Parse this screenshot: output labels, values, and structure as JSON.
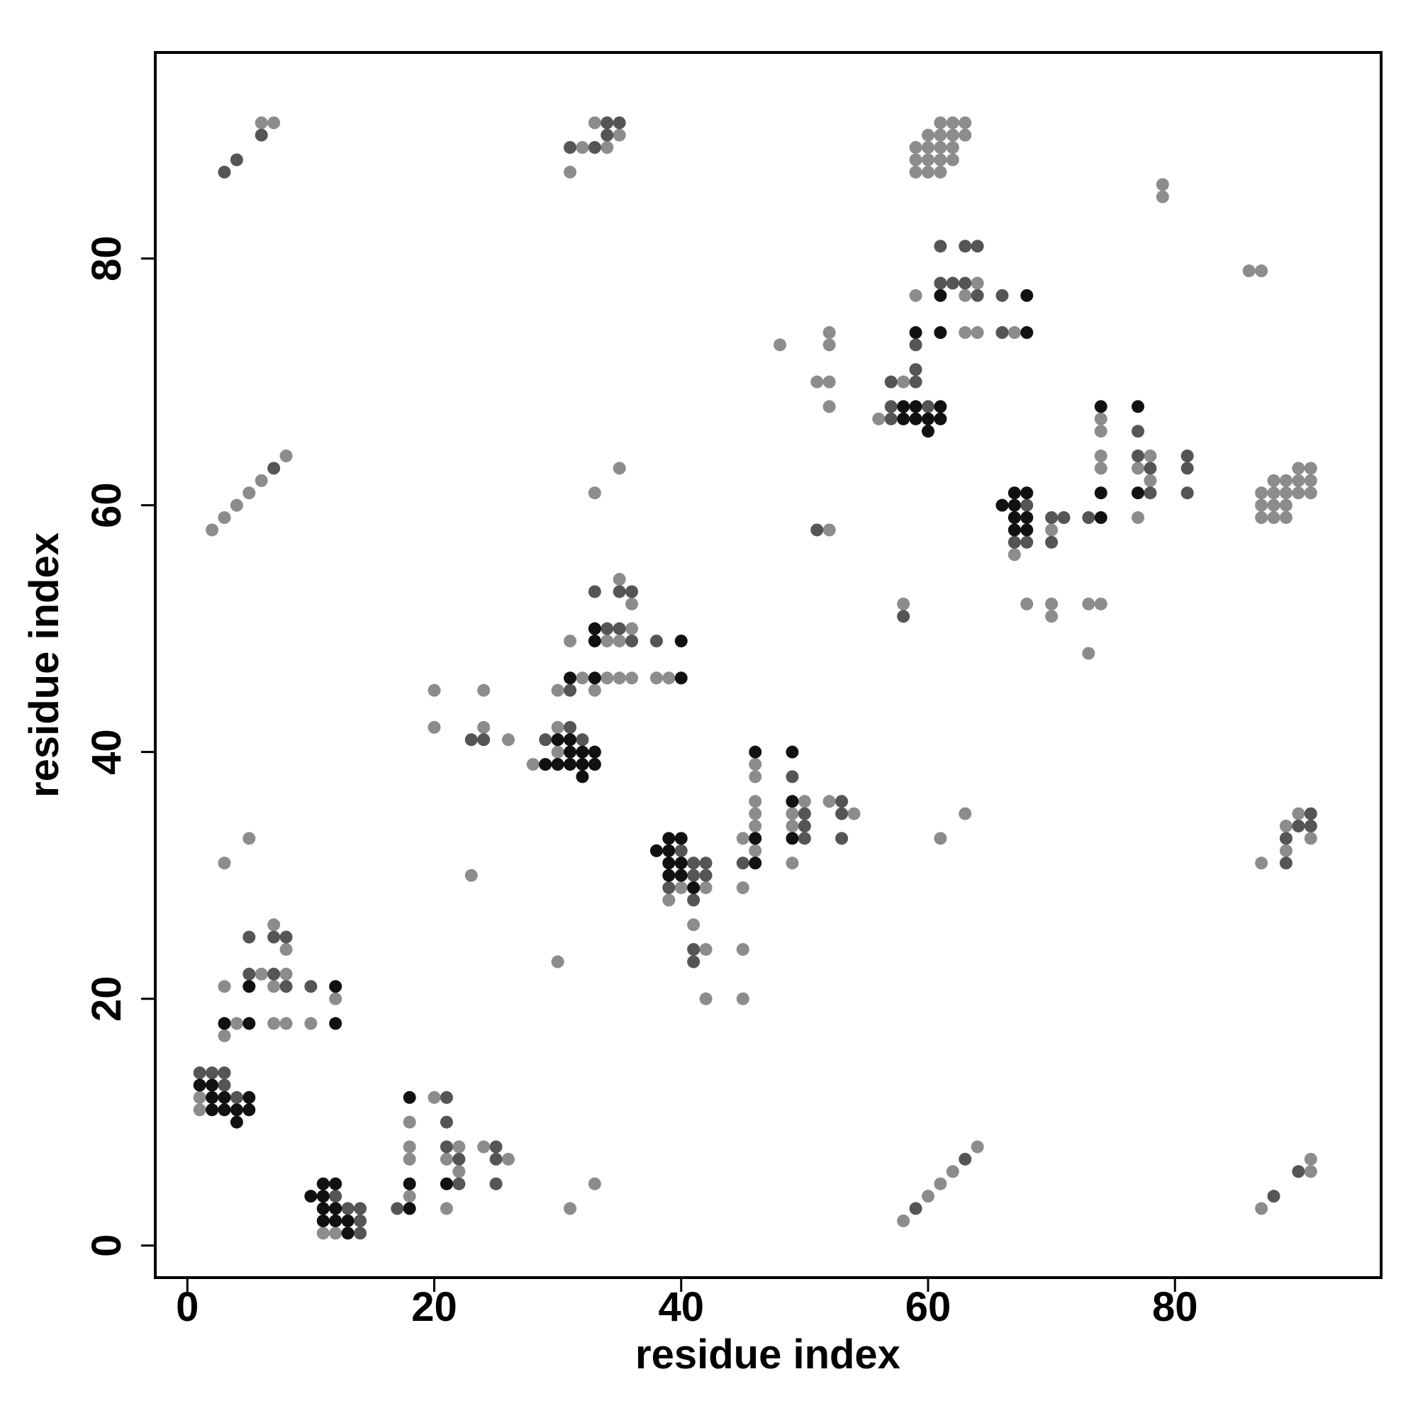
{
  "chart_data": {
    "type": "scatter",
    "xlabel": "residue index",
    "ylabel": "residue index",
    "xlim": [
      -2.6,
      96.7
    ],
    "ylim": [
      -2.6,
      96.7
    ],
    "xticks": [
      0,
      20,
      40,
      60,
      80
    ],
    "yticks": [
      0,
      20,
      40,
      60,
      80
    ],
    "grid": false,
    "series": [
      {
        "color": "#8c8c8c",
        "x": [
          6,
          7,
          31,
          32,
          34,
          33,
          35,
          59,
          60,
          61,
          59,
          60,
          61,
          62,
          59,
          60,
          61,
          62,
          60,
          61,
          62,
          63,
          61,
          62,
          63,
          79,
          79,
          86,
          87,
          64,
          59,
          63,
          63,
          64,
          67,
          48,
          52,
          52,
          51,
          52,
          52,
          58,
          56,
          2,
          3,
          4,
          5,
          6,
          8,
          33,
          35,
          52,
          58,
          67,
          70,
          68,
          70,
          70,
          74,
          74,
          74,
          74,
          73,
          74,
          73,
          78,
          77,
          78,
          77,
          87,
          88,
          89,
          87,
          88,
          89,
          87,
          88,
          89,
          90,
          91,
          88,
          89,
          90,
          91,
          90,
          91,
          35,
          36,
          31,
          36,
          34,
          35,
          32,
          34,
          35,
          36,
          38,
          39,
          33,
          30,
          20,
          24,
          20,
          24,
          26,
          30,
          30,
          28,
          46,
          46,
          46,
          50,
          52,
          46,
          49,
          54,
          46,
          49,
          45,
          46,
          49,
          40,
          42,
          39,
          41,
          42,
          42,
          45,
          45,
          45,
          61,
          63,
          87,
          89,
          89,
          90,
          91,
          3,
          5,
          23,
          30,
          7,
          8,
          6,
          8,
          3,
          7,
          12,
          4,
          7,
          8,
          10,
          3,
          1,
          1,
          11,
          12,
          20,
          18,
          18,
          22,
          24,
          18,
          21,
          26,
          22,
          18,
          21,
          31,
          33,
          58,
          60,
          61,
          62,
          64,
          87,
          91,
          91
        ],
        "y": [
          91,
          91,
          87,
          89,
          89,
          91,
          90,
          87,
          87,
          87,
          88,
          88,
          88,
          88,
          89,
          89,
          89,
          89,
          90,
          90,
          90,
          90,
          91,
          91,
          91,
          86,
          85,
          79,
          79,
          78,
          77,
          77,
          74,
          74,
          74,
          73,
          74,
          73,
          70,
          70,
          68,
          70,
          67,
          58,
          59,
          60,
          61,
          62,
          64,
          61,
          63,
          58,
          52,
          56,
          58,
          52,
          52,
          51,
          63,
          64,
          66,
          67,
          52,
          52,
          48,
          64,
          63,
          62,
          59,
          59,
          59,
          59,
          60,
          60,
          60,
          61,
          61,
          61,
          61,
          61,
          62,
          62,
          62,
          62,
          63,
          63,
          54,
          52,
          49,
          50,
          49,
          49,
          46,
          46,
          46,
          46,
          46,
          46,
          45,
          45,
          45,
          45,
          42,
          42,
          41,
          42,
          40,
          39,
          39,
          38,
          36,
          36,
          36,
          35,
          35,
          35,
          34,
          34,
          33,
          32,
          31,
          29,
          29,
          28,
          26,
          24,
          20,
          29,
          24,
          20,
          33,
          35,
          31,
          32,
          34,
          35,
          33,
          31,
          33,
          30,
          23,
          26,
          24,
          22,
          22,
          21,
          21,
          20,
          18,
          18,
          18,
          18,
          17,
          12,
          11,
          1,
          1,
          12,
          10,
          8,
          8,
          8,
          7,
          7,
          7,
          6,
          4,
          3,
          3,
          5,
          2,
          4,
          5,
          6,
          8,
          3,
          7,
          6
        ]
      },
      {
        "color": "#555555",
        "x": [
          3,
          4,
          6,
          31,
          33,
          34,
          35,
          34,
          61,
          63,
          64,
          61,
          62,
          63,
          64,
          66,
          66,
          59,
          59,
          57,
          59,
          57,
          57,
          60,
          7,
          51,
          58,
          67,
          68,
          68,
          70,
          70,
          71,
          73,
          77,
          77,
          78,
          78,
          81,
          81,
          81,
          33,
          35,
          36,
          34,
          35,
          36,
          38,
          31,
          23,
          24,
          31,
          29,
          32,
          49,
          53,
          50,
          53,
          50,
          50,
          53,
          45,
          40,
          41,
          42,
          41,
          42,
          39,
          41,
          41,
          41,
          89,
          89,
          90,
          91,
          91,
          5,
          7,
          8,
          5,
          7,
          8,
          10,
          1,
          2,
          3,
          3,
          4,
          12,
          13,
          14,
          14,
          14,
          21,
          21,
          21,
          25,
          22,
          25,
          22,
          25,
          17,
          59,
          63,
          88,
          90
        ],
        "y": [
          87,
          88,
          90,
          89,
          89,
          91,
          91,
          90,
          81,
          81,
          81,
          78,
          78,
          78,
          77,
          77,
          74,
          73,
          71,
          70,
          70,
          67,
          68,
          68,
          63,
          58,
          51,
          57,
          60,
          57,
          59,
          57,
          59,
          59,
          66,
          64,
          63,
          61,
          64,
          63,
          61,
          53,
          53,
          53,
          50,
          50,
          49,
          49,
          45,
          41,
          41,
          42,
          41,
          41,
          38,
          36,
          35,
          35,
          34,
          33,
          33,
          31,
          32,
          31,
          31,
          30,
          30,
          29,
          28,
          24,
          23,
          31,
          33,
          34,
          34,
          35,
          25,
          25,
          25,
          22,
          22,
          21,
          21,
          14,
          14,
          14,
          13,
          12,
          4,
          3,
          3,
          2,
          1,
          12,
          10,
          8,
          8,
          7,
          7,
          5,
          5,
          3,
          3,
          7,
          4,
          6
        ]
      },
      {
        "color": "#111111",
        "x": [
          61,
          68,
          59,
          61,
          68,
          58,
          58,
          59,
          59,
          60,
          61,
          61,
          60,
          66,
          67,
          67,
          67,
          67,
          68,
          68,
          68,
          74,
          74,
          74,
          77,
          77,
          33,
          33,
          40,
          31,
          33,
          40,
          30,
          31,
          31,
          32,
          33,
          29,
          30,
          31,
          32,
          33,
          32,
          46,
          49,
          49,
          46,
          49,
          46,
          38,
          39,
          40,
          39,
          39,
          40,
          39,
          40,
          41,
          5,
          12,
          3,
          5,
          12,
          1,
          2,
          2,
          3,
          5,
          2,
          3,
          4,
          5,
          4,
          11,
          12,
          10,
          11,
          11,
          12,
          11,
          12,
          13,
          13,
          18,
          18,
          21,
          18
        ],
        "y": [
          77,
          77,
          74,
          74,
          74,
          67,
          68,
          67,
          68,
          67,
          67,
          68,
          66,
          60,
          60,
          59,
          58,
          61,
          61,
          59,
          58,
          59,
          61,
          68,
          68,
          61,
          50,
          49,
          49,
          46,
          46,
          46,
          41,
          41,
          40,
          40,
          40,
          39,
          39,
          39,
          39,
          39,
          38,
          40,
          40,
          36,
          33,
          33,
          31,
          32,
          33,
          33,
          32,
          31,
          31,
          30,
          30,
          29,
          21,
          21,
          18,
          18,
          18,
          13,
          13,
          12,
          12,
          12,
          11,
          11,
          11,
          11,
          10,
          5,
          5,
          4,
          4,
          3,
          3,
          2,
          2,
          2,
          1,
          12,
          5,
          5,
          3
        ]
      }
    ]
  }
}
